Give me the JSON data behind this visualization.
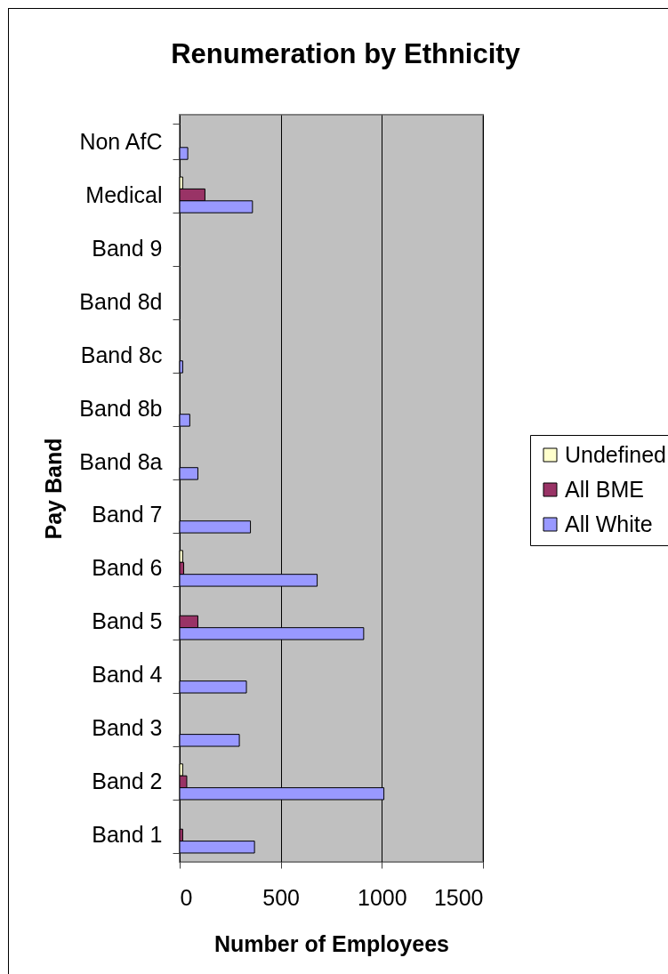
{
  "chart_data": {
    "type": "bar",
    "orientation": "horizontal",
    "title": "Renumeration by Ethnicity",
    "xlabel": "Number of Employees",
    "ylabel": "Pay Band",
    "categories": [
      "Non AfC",
      "Medical",
      "Band 9",
      "Band 8d",
      "Band 8c",
      "Band 8b",
      "Band 8a",
      "Band 7",
      "Band 6",
      "Band 5",
      "Band 4",
      "Band 3",
      "Band 2",
      "Band 1"
    ],
    "series": [
      {
        "name": "Undefined",
        "color": "#ffffcc",
        "values": [
          null,
          15,
          null,
          null,
          null,
          null,
          null,
          null,
          15,
          null,
          null,
          null,
          15,
          null
        ]
      },
      {
        "name": "All BME",
        "color": "#993366",
        "values": [
          null,
          125,
          null,
          null,
          null,
          null,
          null,
          null,
          20,
          90,
          null,
          null,
          35,
          15
        ]
      },
      {
        "name": "All White",
        "color": "#9999ff",
        "values": [
          40,
          360,
          null,
          null,
          15,
          50,
          90,
          350,
          680,
          910,
          330,
          295,
          1010,
          370
        ]
      }
    ],
    "xlim": [
      0,
      1500
    ],
    "xticks": [
      0,
      500,
      1000,
      1500
    ],
    "grid": "x",
    "legend": "right"
  }
}
